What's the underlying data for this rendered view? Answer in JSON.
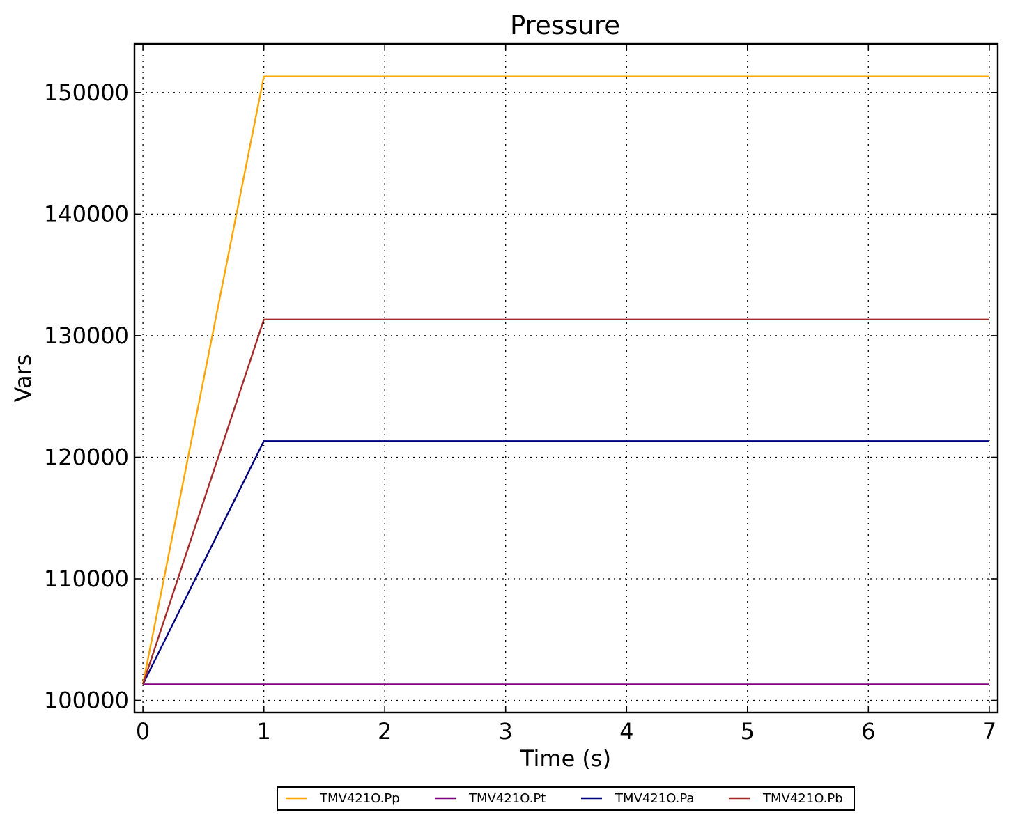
{
  "chart_data": {
    "type": "line",
    "title": "Pressure",
    "xlabel": "Time (s)",
    "ylabel": "Vars",
    "xlim": [
      -0.07,
      7.07
    ],
    "ylim": [
      99000,
      154000
    ],
    "xticks": [
      0,
      1,
      2,
      3,
      4,
      5,
      6,
      7
    ],
    "yticks": [
      100000,
      110000,
      120000,
      130000,
      140000,
      150000
    ],
    "grid": true,
    "legend_position": "bottom-center",
    "x": [
      0,
      1,
      2,
      3,
      4,
      5,
      6,
      7
    ],
    "series": [
      {
        "name": "TMV421O.Pp",
        "color": "#ffa500",
        "values": [
          101325,
          151325,
          151325,
          151325,
          151325,
          151325,
          151325,
          151325
        ]
      },
      {
        "name": "TMV421O.Pt",
        "color": "#800080",
        "values": [
          101325,
          101325,
          101325,
          101325,
          101325,
          101325,
          101325,
          101325
        ]
      },
      {
        "name": "TMV421O.Pa",
        "color": "#000080",
        "values": [
          101325,
          121325,
          121325,
          121325,
          121325,
          121325,
          121325,
          121325
        ]
      },
      {
        "name": "TMV421O.Pb",
        "color": "#a52a2a",
        "values": [
          101325,
          131325,
          131325,
          131325,
          131325,
          131325,
          131325,
          131325
        ]
      }
    ]
  }
}
